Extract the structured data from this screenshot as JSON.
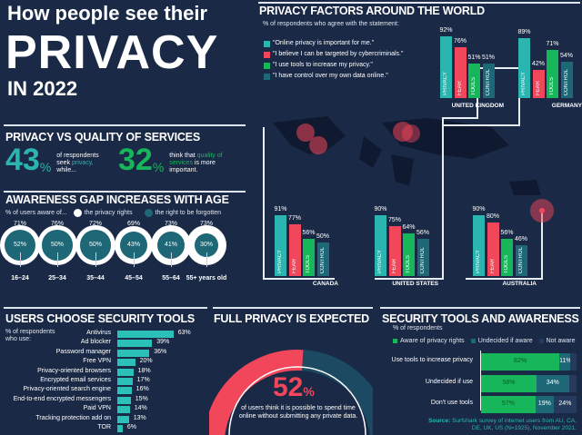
{
  "header": {
    "line1": "How people see their",
    "line2": "PRIVACY",
    "line3": "IN 2022"
  },
  "colors": {
    "bg": "#1a2946",
    "teal": "#2bb5b0",
    "red": "#f2465a",
    "green": "#17b65a",
    "dark_teal": "#1d6777",
    "bar": "#2bc0b8"
  },
  "pvq": {
    "title": "PRIVACY VS QUALITY OF SERVICES",
    "left_value": "43",
    "left_unit": "%",
    "left_text_1": "of respondents",
    "left_text_2": "seek",
    "left_hl": "privacy,",
    "left_text_3": "while...",
    "right_value": "32",
    "right_unit": "%",
    "right_text_1": "think that",
    "right_hl": "quality of services",
    "right_text_2": "is more important."
  },
  "chart_data": [
    {
      "type": "bar",
      "title": "PRIVACY FACTORS AROUND THE WORLD",
      "subtitle": "% of respondents who agree with the statement:",
      "legend": [
        "\"Online privacy is important for me.\"",
        "\"I believe I can be targeted by cybercriminals.\"",
        "\"I use tools to increase my privacy.\"",
        "\"I have control over my own data online.\""
      ],
      "categories": [
        "PRIVACY",
        "FEAR",
        "TOOLS",
        "CONTROL"
      ],
      "groups": [
        {
          "name": "UNITED KINGDOM",
          "values": [
            92,
            76,
            51,
            51
          ]
        },
        {
          "name": "GERMANY",
          "values": [
            89,
            42,
            71,
            54
          ]
        },
        {
          "name": "CANADA",
          "values": [
            91,
            77,
            56,
            50
          ]
        },
        {
          "name": "UNITED STATES",
          "values": [
            90,
            75,
            64,
            56
          ]
        },
        {
          "name": "AUSTRALIA",
          "values": [
            90,
            80,
            56,
            46
          ]
        }
      ],
      "unit": "%"
    },
    {
      "type": "bar",
      "title": "AWARENESS GAP INCREASES WITH AGE",
      "subtitle": "% of users aware of...",
      "legend": [
        "the privacy rights",
        "the right to be forgotten"
      ],
      "categories": [
        "16–24",
        "25–34",
        "35–44",
        "45–54",
        "55–64",
        "55+ years old"
      ],
      "series": [
        {
          "name": "the privacy rights",
          "values": [
            71,
            76,
            72,
            69,
            73,
            73
          ]
        },
        {
          "name": "the right to be forgotten",
          "values": [
            52,
            50,
            50,
            43,
            41,
            30
          ]
        }
      ],
      "unit": "%"
    },
    {
      "type": "bar",
      "title": "USERS CHOOSE SECURITY TOOLS",
      "subtitle": "% of respondents who use:",
      "categories": [
        "Antivirus",
        "Ad blocker",
        "Password manager",
        "Free VPN",
        "Privacy-oriented browsers",
        "Encrypted email services",
        "Privacy-oriented search engine",
        "End-to-end encrypted messengers",
        "Paid VPN",
        "Tracking protection add on",
        "TOR"
      ],
      "values": [
        63,
        39,
        36,
        20,
        18,
        17,
        16,
        15,
        14,
        13,
        6
      ],
      "unit": "%"
    },
    {
      "type": "pie",
      "title": "FULL PRIVACY IS EXPECTED",
      "value": 52,
      "value_label": "52",
      "unit": "%",
      "text": "of users think it is possible to spend time online without submitting any private data."
    },
    {
      "type": "bar",
      "title": "SECURITY TOOLS AND  AWARENESS",
      "subtitle": "% of respondents",
      "legend": [
        "Aware of privacy rights",
        "Undecided if aware",
        "Not aware"
      ],
      "categories": [
        "Use tools to increase privacy",
        "Undecided if use",
        "Don't use tools"
      ],
      "series": [
        {
          "name": "Aware of privacy rights",
          "values": [
            82,
            58,
            57
          ]
        },
        {
          "name": "Undecided if aware",
          "values": [
            11,
            34,
            19
          ]
        },
        {
          "name": "Not aware",
          "values": [
            7,
            8,
            24
          ]
        }
      ],
      "labels": [
        [
          "82%",
          "11%",
          ""
        ],
        [
          "58%",
          "34%",
          ""
        ],
        [
          "57%",
          "19%",
          "24%"
        ]
      ],
      "unit": "%"
    }
  ],
  "source": {
    "label": "Source:",
    "text": "Surfshark survey of internet users from AU, CA, DE, UK, US (N=1925), November 2021."
  }
}
